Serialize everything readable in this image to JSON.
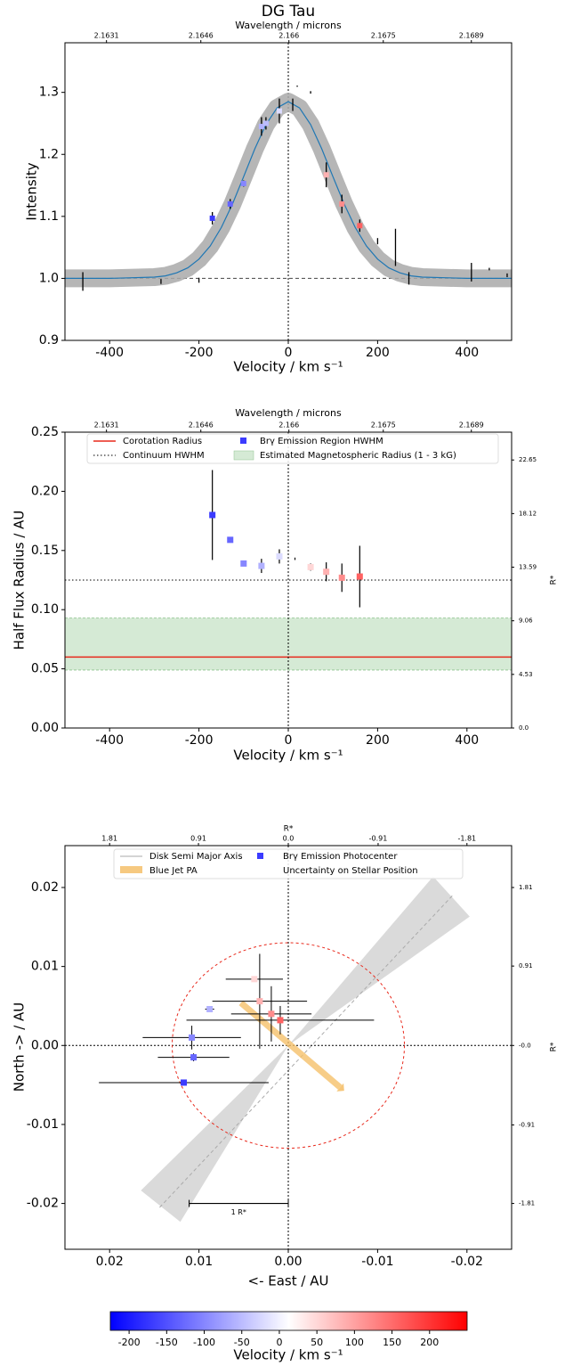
{
  "chart_data": [
    {
      "type": "line",
      "title": "DG Tau",
      "x2label": "Wavelength / microns",
      "xlabel": "Velocity / km s⁻¹",
      "ylabel": "Intensity",
      "xlim": [
        -500,
        500
      ],
      "ylim": [
        0.9,
        1.38
      ],
      "xticks": [
        -400,
        -200,
        0,
        200,
        400
      ],
      "yticks": [
        {
          "value": 0.9,
          "label": "0.9"
        },
        {
          "value": 1.0,
          "label": "1.0"
        },
        1.1,
        1.2,
        1.3
      ],
      "x2lim": [
        2.16244,
        2.16954
      ],
      "x2ticks": [
        2.1631,
        2.1646,
        2.166,
        2.1675,
        2.1689
      ],
      "baseline": {
        "value": 1.0,
        "label": ""
      },
      "fit": {
        "color": "#1f77b4",
        "band_color": "#a9a9a9",
        "x": [
          -500,
          -400,
          -300,
          -275,
          -250,
          -225,
          -200,
          -175,
          -150,
          -125,
          -100,
          -75,
          -50,
          -25,
          0,
          25,
          50,
          75,
          100,
          125,
          150,
          175,
          200,
          225,
          250,
          275,
          300,
          400,
          500
        ],
        "values": [
          1.0,
          1.0,
          1.002,
          1.004,
          1.009,
          1.017,
          1.031,
          1.052,
          1.082,
          1.12,
          1.164,
          1.209,
          1.248,
          1.275,
          1.285,
          1.275,
          1.248,
          1.209,
          1.164,
          1.12,
          1.082,
          1.052,
          1.031,
          1.017,
          1.009,
          1.004,
          1.002,
          1.0,
          1.0
        ]
      },
      "points": {
        "x": [
          -170,
          -130,
          -100,
          -60,
          -50,
          -20,
          85,
          120,
          160
        ],
        "values": [
          1.097,
          1.12,
          1.153,
          1.245,
          1.25,
          1.27,
          1.167,
          1.12,
          1.085
        ],
        "errors": [
          0.01,
          0.008,
          0.005,
          0.015,
          0.01,
          0.02,
          0.02,
          0.015,
          0.01
        ]
      },
      "bars": {
        "x": [
          -460,
          -285,
          -200,
          10,
          20,
          50,
          200,
          240,
          270,
          410,
          450,
          490
        ],
        "values": [
          0.995,
          0.995,
          0.997,
          1.28,
          1.31,
          1.3,
          1.06,
          1.05,
          1.0,
          1.01,
          1.015,
          1.005
        ],
        "errors": [
          0.015,
          0.004,
          0.004,
          0.01,
          0.001,
          0.002,
          0.005,
          0.03,
          0.01,
          0.015,
          0.002,
          0.003
        ]
      }
    },
    {
      "type": "errorbar",
      "x2label": "Wavelength / microns",
      "xlabel": "Velocity / km s⁻¹",
      "ylabel": "Half Flux Radius / AU",
      "y2label": "R*",
      "xlim": [
        -500,
        500
      ],
      "ylim": [
        0,
        0.25
      ],
      "xticks": [
        -400,
        -200,
        0,
        200,
        400
      ],
      "yticks": [
        {
          "value": 0,
          "label": "0.00"
        },
        {
          "value": 0.05,
          "label": "0.05"
        },
        {
          "value": 0.1,
          "label": "0.10"
        },
        {
          "value": 0.15,
          "label": "0.15"
        },
        {
          "value": 0.2,
          "label": "0.20"
        },
        {
          "value": 0.25,
          "label": "0.25"
        }
      ],
      "x2lim": [
        2.16244,
        2.16954
      ],
      "x2ticks": [
        2.1631,
        2.1646,
        2.166,
        2.1675,
        2.1689
      ],
      "y2lim": [
        0,
        25
      ],
      "y2ticks": [
        {
          "value": 0,
          "label": "0.0"
        },
        4.53,
        9.06,
        13.59,
        18.12,
        22.65
      ],
      "corotation": {
        "name": "Corotation Radius",
        "color": "#e8291c",
        "value": 0.06
      },
      "continuum": {
        "name": "Continuum HWHM",
        "color": "#333333",
        "value": 0.125
      },
      "magnetosphere": {
        "name": "Estimated Magnetospheric Radius (1 - 3 kG)",
        "color": "#d5ead5",
        "range": [
          0.049,
          0.093
        ]
      },
      "points": {
        "name": "Brγ Emission Region HWHM",
        "x": [
          -170,
          -130,
          -100,
          -60,
          -20,
          50,
          85,
          120,
          160
        ],
        "values": [
          0.18,
          0.159,
          0.139,
          0.137,
          0.145,
          0.136,
          0.132,
          0.127,
          0.128
        ],
        "errors": [
          0.038,
          0.002,
          0.002,
          0.006,
          0.006,
          0.003,
          0.008,
          0.012,
          0.026
        ]
      },
      "bars": {
        "x": [
          15
        ],
        "values": [
          0.143
        ],
        "errors": [
          0.001
        ]
      }
    },
    {
      "type": "scatter",
      "x2label": "R*",
      "y2label": "R*",
      "xlabel": "<- East  / AU",
      "ylabel": "North -> / AU",
      "xlim": [
        0.025,
        -0.025
      ],
      "ylim": [
        -0.0258,
        0.0253
      ],
      "xticks": [
        0.02,
        0.01,
        {
          "value": 0,
          "label": "0.00"
        },
        -0.01,
        -0.02
      ],
      "yticks": [
        -0.02,
        -0.01,
        {
          "value": 0,
          "label": "0.00"
        },
        0.01,
        0.02
      ],
      "x2lim": [
        2.2625,
        -2.2625
      ],
      "x2ticks": [
        1.81,
        0.91,
        {
          "value": 0,
          "label": "0.0"
        },
        -0.91,
        -1.81
      ],
      "y2lim": [
        -2.3349,
        2.2897
      ],
      "y2ticks": [
        1.81,
        0.91,
        {
          "value": 0,
          "label": "-0.0"
        },
        -0.91,
        -1.81
      ],
      "disk": {
        "name": "Disk Semi Major Axis",
        "color": "#aaaaaa",
        "x": [
          0.0144,
          -0.0184
        ],
        "values": [
          -0.0205,
          0.019
        ]
      },
      "jet": {
        "name": "Blue Jet PA",
        "color": "#f5c06a",
        "x": [
          0.0053,
          -0.0058
        ],
        "values": [
          0.0054,
          -0.0053
        ]
      },
      "uncertainty": {
        "name": "Uncertainty on Stellar Position",
        "color": "#e8291c",
        "radius": 0.013
      },
      "points": {
        "name": "Brγ Emission Photocenter",
        "x": [
          0.0117,
          0.0106,
          0.0108,
          0.0088,
          0.0038,
          0.0032,
          0.0019,
          0.0009
        ],
        "values": [
          -0.0047,
          -0.0015,
          0.001,
          0.0046,
          0.0084,
          0.0056,
          0.004,
          0.0032
        ],
        "xerr": [
          0.0095,
          0.004,
          0.0055,
          0.0005,
          0.0032,
          0.0053,
          0.0045,
          0.0105
        ],
        "yerr": [
          0.0003,
          0.0005,
          0.0015,
          0.0002,
          0.0002,
          0.006,
          0.0035,
          0.0018
        ],
        "velocity": [
          -170,
          -130,
          -100,
          -60,
          50,
          85,
          120,
          160
        ]
      },
      "scale_bar": {
        "label": "1 R*",
        "x": [
          0.0111,
          0
        ],
        "value": -0.02
      }
    },
    {
      "type": "colorbar",
      "xlabel": "Velocity / km s⁻¹",
      "clim": [
        -225,
        250
      ],
      "ticks": [
        -200,
        -150,
        -100,
        -50,
        0,
        50,
        100,
        150,
        200
      ],
      "colors": [
        "#0000ff",
        "#ffffff",
        "#ff0000"
      ]
    }
  ]
}
